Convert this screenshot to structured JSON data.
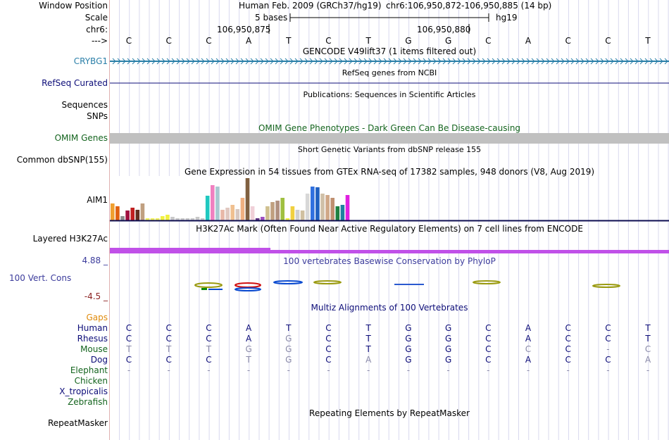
{
  "colors": {
    "crybg1": "#2a7fa8",
    "refseq": "#0c0c78",
    "omim": "#14641e",
    "phylop": "#3c3c9c",
    "phylop_low": "#8b2222",
    "gaps": "#e08a0a",
    "navy": "#0c0c78",
    "green": "#14641e",
    "h3k27": "#c050e8"
  },
  "header": {
    "window_label": "Window Position",
    "scale_label": "Scale",
    "chr_label": "chr6:",
    "arrow_label": "--->",
    "assembly": "Human Feb. 2009 (GRCh37/hg19)",
    "coords": "chr6:106,950,872-106,950,885 (14 bp)",
    "scale_text": "5 bases",
    "hg19": "hg19",
    "pos1": "106,950,875",
    "pos2": "106,950,880"
  },
  "bases": [
    "C",
    "C",
    "C",
    "A",
    "T",
    "C",
    "T",
    "G",
    "G",
    "C",
    "A",
    "C",
    "C",
    "T"
  ],
  "tracks": {
    "gencode_title": "GENCODE V49lift37 (1 items filtered out)",
    "gene_name": "CRYBG1",
    "refseq_title": "RefSeq genes from NCBI",
    "refseq_label": "RefSeq Curated",
    "pubs_title": "Publications: Sequences in Scientific Articles",
    "sequences_label": "Sequences",
    "snps_label": "SNPs",
    "omim_title": "OMIM Gene Phenotypes - Dark Green Can Be Disease-causing",
    "omim_label": "OMIM Genes",
    "dbsnp_title": "Short Genetic Variants from dbSNP release 155",
    "dbsnp_label": "Common dbSNP(155)",
    "gtex_title": "Gene Expression in 54 tissues from GTEx RNA-seq of 17382 samples, 948 donors (V8, Aug 2019)",
    "gtex_label": "AIM1",
    "h3k_title": "H3K27Ac Mark (Often Found Near Active Regulatory Elements) on 7 cell lines from ENCODE",
    "h3k_label": "Layered H3K27Ac",
    "phylop_title": "100 vertebrates Basewise Conservation by PhyloP",
    "phylop_label": "100 Vert. Cons",
    "phylop_max": "4.88 _",
    "phylop_min": "-4.5 _",
    "multiz_title": "Multiz Alignments of 100 Vertebrates",
    "gaps_label": "Gaps",
    "rmsk_title": "Repeating Elements by RepeatMasker",
    "rmsk_label": "RepeatMasker"
  },
  "gtex_values": [
    24,
    20,
    6,
    14,
    18,
    15,
    24,
    3,
    3,
    3,
    6,
    8,
    5,
    3,
    3,
    3,
    3,
    5,
    3,
    35,
    50,
    48,
    15,
    18,
    22,
    16,
    32,
    60,
    20,
    3,
    5,
    20,
    26,
    28,
    32,
    3,
    20,
    15,
    14,
    38,
    48,
    47,
    38,
    36,
    32,
    20,
    22,
    36
  ],
  "gtex_colors": [
    "#f0a030",
    "#e06010",
    "#8c8c8c",
    "#a01040",
    "#c02020",
    "#603020",
    "#c0a080",
    "#f0f060",
    "#f0f060",
    "#f0f060",
    "#f0f040",
    "#f0f040",
    "#c8c8c8",
    "#c8c8c8",
    "#c8c8c8",
    "#c8c8c8",
    "#c8c8c8",
    "#c8c8c8",
    "#c8c8c8",
    "#20c8c0",
    "#f080c0",
    "#a8c8d0",
    "#e8b8a8",
    "#e0c8c0",
    "#f0c090",
    "#d8c8c0",
    "#f0b080",
    "#806040",
    "#f0d0d8",
    "#603080",
    "#a050c0",
    "#d0c090",
    "#c0a080",
    "#b09080",
    "#a0c040",
    "#f0f040",
    "#f0d040",
    "#d0d0d0",
    "#d0c0a0",
    "#d8d8d8",
    "#3070e0",
    "#2060c0",
    "#d0c0a8",
    "#d0a888",
    "#c09070",
    "#208040",
    "#2080a0",
    "#e020e0"
  ],
  "alignments": [
    {
      "species": "Human",
      "color": "#0c0c78",
      "bases": [
        "C",
        "C",
        "C",
        "A",
        "T",
        "C",
        "T",
        "G",
        "G",
        "C",
        "A",
        "C",
        "C",
        "T"
      ]
    },
    {
      "species": "Rhesus",
      "color": "#0c0c78",
      "bases": [
        "C",
        "C",
        "C",
        "A",
        "G",
        "C",
        "T",
        "G",
        "G",
        "C",
        "A",
        "C",
        "C",
        "T"
      ]
    },
    {
      "species": "Mouse",
      "color": "#14641e",
      "bases": [
        "T",
        "T",
        "T",
        "G",
        "G",
        "C",
        "T",
        "G",
        "G",
        "C",
        "C",
        "C",
        "-",
        "C"
      ]
    },
    {
      "species": "Dog",
      "color": "#0c0c78",
      "bases": [
        "C",
        "C",
        "C",
        "T",
        "G",
        "C",
        "A",
        "G",
        "G",
        "C",
        "A",
        "C",
        "C",
        "A"
      ]
    },
    {
      "species": "Elephant",
      "color": "#14641e",
      "bases": [
        "-",
        "-",
        "-",
        "-",
        "-",
        "-",
        "-",
        "-",
        "-",
        "-",
        "-",
        "-",
        "-",
        "-"
      ]
    },
    {
      "species": "Chicken",
      "color": "#14641e",
      "bases": [
        "",
        "",
        "",
        "",
        "",
        "",
        "",
        "",
        "",
        "",
        "",
        "",
        "",
        ""
      ]
    },
    {
      "species": "X_tropicalis",
      "color": "#0c0c78",
      "bases": [
        "",
        "",
        "",
        "",
        "",
        "",
        "",
        "",
        "",
        "",
        "",
        "",
        "",
        ""
      ]
    },
    {
      "species": "Zebrafish",
      "color": "#14641e",
      "bases": [
        "",
        "",
        "",
        "",
        "",
        "",
        "",
        "",
        "",
        "",
        "",
        "",
        "",
        ""
      ]
    }
  ]
}
